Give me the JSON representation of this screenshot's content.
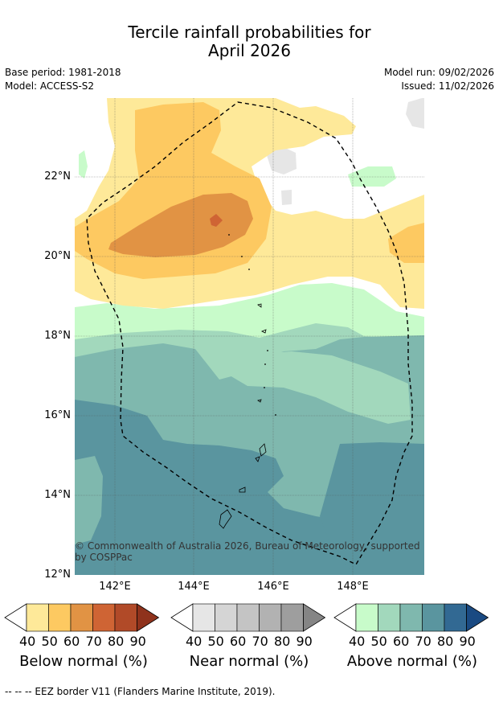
{
  "title_line1": "Tercile rainfall probabilities for",
  "title_line2": "April 2026",
  "base_period": "Base period: 1981-2018",
  "model": "Model: ACCESS-S2",
  "model_run": "Model run: 09/02/2026",
  "issued": "Issued: 11/02/2026",
  "lat_labels": [
    "22°N",
    "20°N",
    "18°N",
    "16°N",
    "14°N",
    "12°N"
  ],
  "lon_labels": [
    "142°E",
    "144°E",
    "146°E",
    "148°E"
  ],
  "copyright": "© Commonwealth of Australia 2026, Bureau of Meteorology, supported by COSPPac",
  "colorbars": [
    {
      "title": "Below normal (%)",
      "ticks": [
        "40",
        "50",
        "60",
        "70",
        "80",
        "90"
      ],
      "colors": [
        "#ffffff",
        "#fee999",
        "#fdc961",
        "#e19344",
        "#cf6434",
        "#b14a28",
        "#8f321c"
      ]
    },
    {
      "title": "Near normal (%)",
      "ticks": [
        "40",
        "50",
        "60",
        "70",
        "80",
        "90"
      ],
      "colors": [
        "#ffffff",
        "#e6e6e6",
        "#d5d5d5",
        "#c4c4c4",
        "#b2b2b2",
        "#9e9e9e",
        "#858585"
      ]
    },
    {
      "title": "Above normal (%)",
      "ticks": [
        "40",
        "50",
        "60",
        "70",
        "80",
        "90"
      ],
      "colors": [
        "#ffffff",
        "#c8fbca",
        "#a2d8bc",
        "#7fb8ae",
        "#5a959f",
        "#326993",
        "#1a4a82"
      ]
    }
  ],
  "footer": "-- -- -- EEZ border V11 (Flanders Marine Institute, 2019)."
}
